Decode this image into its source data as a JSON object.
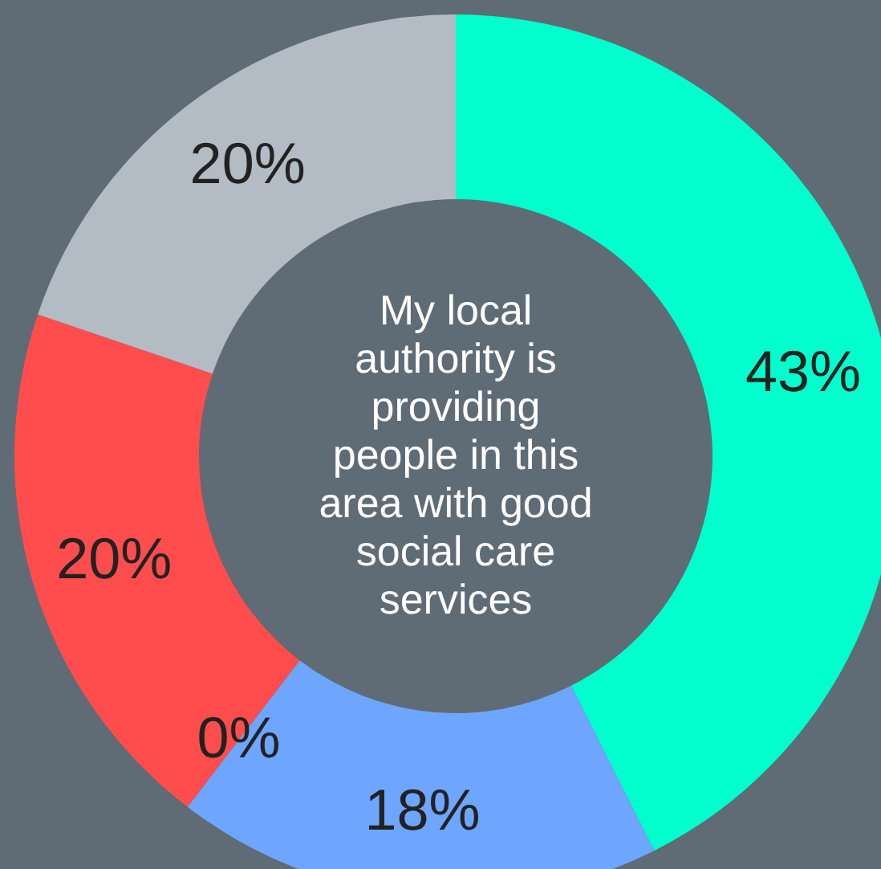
{
  "chart_data": {
    "type": "donut",
    "title": "My local authority is providing people in this area with good social care services",
    "categories": [
      null,
      null,
      null,
      null,
      null
    ],
    "values": [
      43,
      18,
      0,
      20,
      20
    ],
    "colors": [
      "#00ffcc",
      "#6ea6ff",
      "#ffc000",
      "#ff4d4d",
      "#b3bcc4"
    ],
    "value_labels": [
      "43%",
      "18%",
      "0%",
      "20%",
      "20%"
    ]
  }
}
